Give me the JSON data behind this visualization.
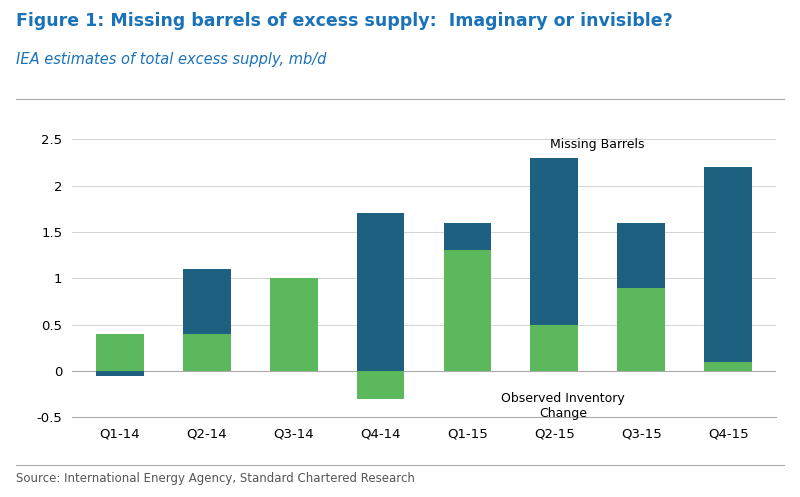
{
  "title": "Figure 1: Missing barrels of excess supply:  Imaginary or invisible?",
  "subtitle": "IEA estimates of total excess supply, mb/d",
  "source": "Source: International Energy Agency, Standard Chartered Research",
  "categories": [
    "Q1-14",
    "Q2-14",
    "Q3-14",
    "Q4-14",
    "Q1-15",
    "Q2-15",
    "Q3-15",
    "Q4-15"
  ],
  "observed_inventory": [
    0.4,
    0.4,
    1.0,
    -0.3,
    1.3,
    0.5,
    0.9,
    0.1
  ],
  "missing_barrels": [
    -0.05,
    0.7,
    0.0,
    1.7,
    0.3,
    1.8,
    0.7,
    2.1
  ],
  "color_green": "#5cb85c",
  "color_blue": "#1e6080",
  "ylim_min": -0.5,
  "ylim_max": 2.5,
  "yticks": [
    -0.5,
    0.0,
    0.5,
    1.0,
    1.5,
    2.0,
    2.5
  ],
  "title_color": "#1a72b8",
  "subtitle_color": "#1a72b8",
  "background_color": "#ffffff",
  "annotation_missing": "Missing Barrels",
  "annotation_observed": "Observed Inventory\nChange",
  "bar_width": 0.55,
  "title_fontsize": 12.5,
  "subtitle_fontsize": 10.5,
  "source_fontsize": 8.5,
  "tick_fontsize": 9.5
}
